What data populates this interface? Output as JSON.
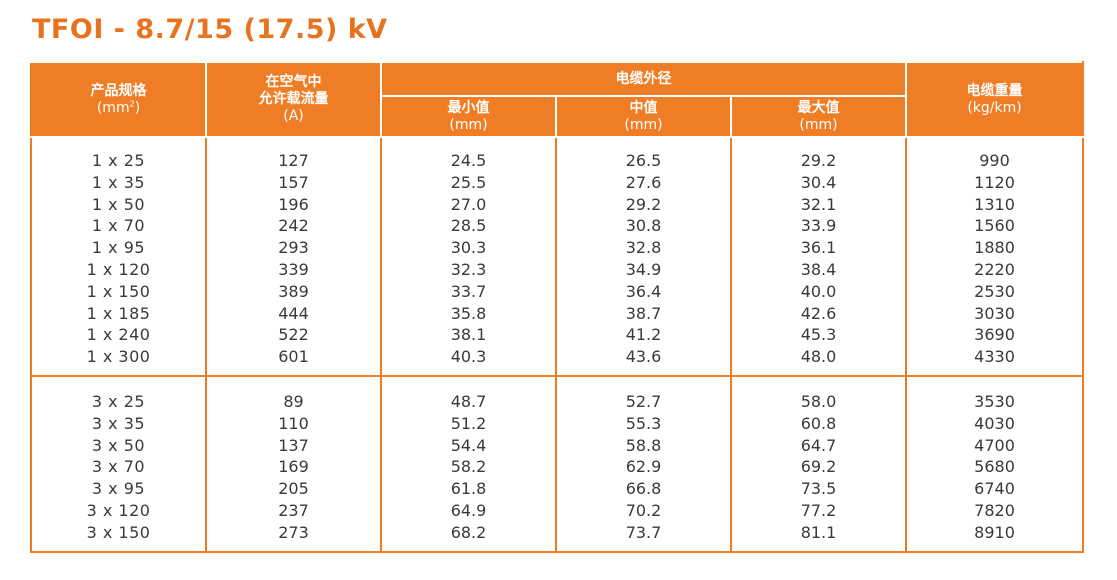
{
  "title": "TFOI - 8.7/15 (17.5) kV",
  "header": {
    "spec_label": "产品规格",
    "spec_unit_base": "(mm",
    "spec_unit_sup": "2",
    "spec_unit_close": ")",
    "current_line1": "在空气中",
    "current_line2": "允许载流量",
    "current_unit": "(A)",
    "diameter_group": "电缆外径",
    "min_label": "最小值",
    "min_unit": "(mm)",
    "mid_label": "中值",
    "mid_unit": "(mm)",
    "max_label": "最大值",
    "max_unit": "(mm)",
    "weight_label": "电缆重量",
    "weight_unit": "(kg/km)"
  },
  "groups": [
    {
      "size": [
        "1 x 25",
        "1 x 35",
        "1 x 50",
        "1 x 70",
        "1 x 95",
        "1 x 120",
        "1 x 150",
        "1 x 185",
        "1 x 240",
        "1 x 300"
      ],
      "current": [
        "127",
        "157",
        "196",
        "242",
        "293",
        "339",
        "389",
        "444",
        "522",
        "601"
      ],
      "min": [
        "24.5",
        "25.5",
        "27.0",
        "28.5",
        "30.3",
        "32.3",
        "33.7",
        "35.8",
        "38.1",
        "40.3"
      ],
      "mid": [
        "26.5",
        "27.6",
        "29.2",
        "30.8",
        "32.8",
        "34.9",
        "36.4",
        "38.7",
        "41.2",
        "43.6"
      ],
      "max": [
        "29.2",
        "30.4",
        "32.1",
        "33.9",
        "36.1",
        "38.4",
        "40.0",
        "42.6",
        "45.3",
        "48.0"
      ],
      "weight": [
        "990",
        "1120",
        "1310",
        "1560",
        "1880",
        "2220",
        "2530",
        "3030",
        "3690",
        "4330"
      ]
    },
    {
      "size": [
        "3 x 25",
        "3 x 35",
        "3 x 50",
        "3 x 70",
        "3 x 95",
        "3 x 120",
        "3 x 150"
      ],
      "current": [
        "89",
        "110",
        "137",
        "169",
        "205",
        "237",
        "273"
      ],
      "min": [
        "48.7",
        "51.2",
        "54.4",
        "58.2",
        "61.8",
        "64.9",
        "68.2"
      ],
      "mid": [
        "52.7",
        "55.3",
        "58.8",
        "62.9",
        "66.8",
        "70.2",
        "73.7"
      ],
      "max": [
        "58.0",
        "60.8",
        "64.7",
        "69.2",
        "73.5",
        "77.2",
        "81.1"
      ],
      "weight": [
        "3530",
        "4030",
        "4700",
        "5680",
        "6740",
        "7820",
        "8910"
      ]
    }
  ]
}
